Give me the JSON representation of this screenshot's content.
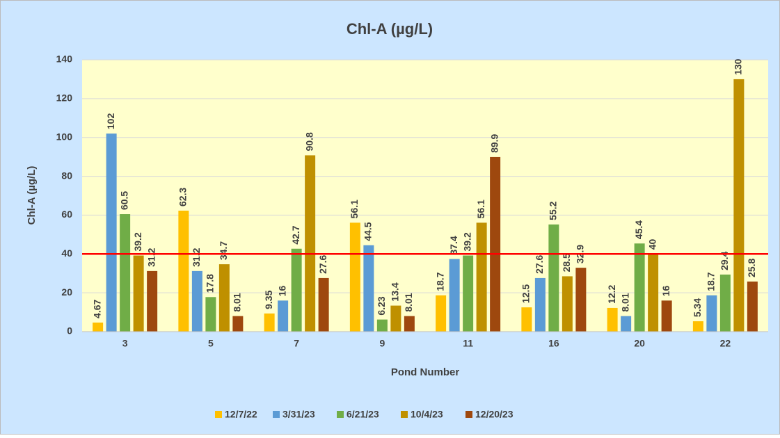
{
  "chart_data": {
    "type": "bar",
    "title": "Chl-A (µg/L)",
    "x_label": "Pond Number",
    "y_label": "Chl-A (µg/L)",
    "categories": [
      "3",
      "5",
      "7",
      "9",
      "11",
      "16",
      "20",
      "22"
    ],
    "series": [
      {
        "name": "12/7/22",
        "color": "#ffc000",
        "values": [
          4.67,
          62.3,
          9.35,
          56.1,
          18.7,
          12.5,
          12.2,
          5.34
        ]
      },
      {
        "name": "3/31/23",
        "color": "#5b9bd5",
        "values": [
          102,
          31.2,
          16,
          44.5,
          37.4,
          27.6,
          8.01,
          18.7
        ]
      },
      {
        "name": "6/21/23",
        "color": "#70ad47",
        "values": [
          60.5,
          17.8,
          42.7,
          6.23,
          39.2,
          55.2,
          45.4,
          29.4
        ]
      },
      {
        "name": "10/4/23",
        "color": "#bf9000",
        "values": [
          39.2,
          34.7,
          90.8,
          13.4,
          56.1,
          28.5,
          40,
          130
        ]
      },
      {
        "name": "12/20/23",
        "color": "#9e480e",
        "values": [
          31.2,
          8.01,
          27.6,
          8.01,
          89.9,
          32.9,
          16,
          25.8
        ]
      }
    ],
    "ylim": [
      0,
      140
    ],
    "yticks": [
      0,
      20,
      40,
      60,
      80,
      100,
      120,
      140
    ],
    "grid": true,
    "reference_line": {
      "value": 40,
      "color": "#ff0000"
    },
    "legend": "bottom"
  }
}
